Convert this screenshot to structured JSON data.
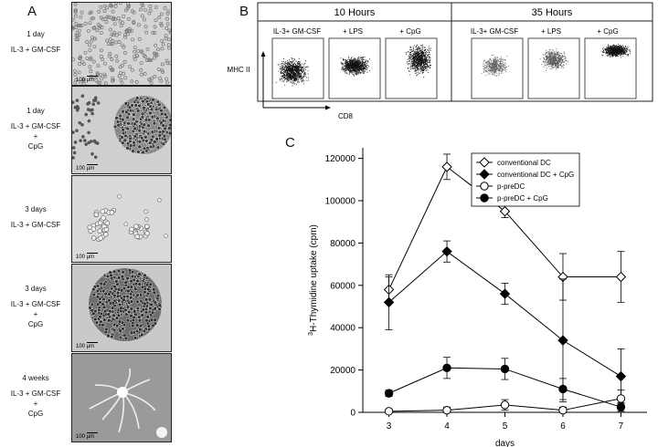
{
  "panel_a": {
    "letter": "A",
    "rows": [
      {
        "lines": [
          "1 day",
          "IL-3 + GM-CSF"
        ],
        "scale": "100 µm"
      },
      {
        "lines": [
          "1 day",
          "IL-3 + GM-CSF",
          "+",
          "CpG"
        ],
        "scale": "100 µm"
      },
      {
        "lines": [
          "3 days",
          "IL-3 + GM-CSF"
        ],
        "scale": "100 µm"
      },
      {
        "lines": [
          "3 days",
          "IL-3 + GM-CSF",
          "+",
          "CpG"
        ],
        "scale": "100 µm"
      },
      {
        "lines": [
          "4 weeks",
          "IL-3 + GM-CSF",
          "+",
          "CpG"
        ],
        "scale": "100 µm"
      }
    ]
  },
  "panel_b": {
    "letter": "B",
    "groups": [
      "10 Hours",
      "35 Hours"
    ],
    "plot_labels": [
      "IL-3+ GM-CSF",
      "+ LPS",
      "+ CpG",
      "IL-3+ GM-CSF",
      "+ LPS",
      "+ CpG"
    ],
    "y_axis": "MHC II",
    "x_axis": "CD8"
  },
  "panel_c": {
    "letter": "C"
  },
  "chart_data": {
    "type": "line",
    "xlabel": "days",
    "ylabel_sup": "3",
    "ylabel": "H-Thymidine uptake (cpm)",
    "x": [
      3,
      4,
      5,
      6,
      7
    ],
    "xlim": [
      2.55,
      7.45
    ],
    "ylim": [
      0,
      125000
    ],
    "yticks": [
      0,
      20000,
      40000,
      60000,
      80000,
      100000,
      120000
    ],
    "xticks": [
      3,
      4,
      5,
      6,
      7
    ],
    "legend_position": "top-right",
    "series": [
      {
        "name": "conventional DC",
        "marker": "open-diamond",
        "values": [
          58000,
          116000,
          95000,
          64000,
          64000
        ],
        "errors": [
          6000,
          6000,
          3000,
          11000,
          12000
        ]
      },
      {
        "name": "conventional DC + CpG",
        "marker": "filled-diamond",
        "values": [
          52000,
          76000,
          56000,
          34000,
          17000
        ],
        "errors": [
          13000,
          5000,
          5000,
          29000,
          13000
        ]
      },
      {
        "name": "p-preDC",
        "marker": "open-circle",
        "values": [
          500,
          1000,
          3500,
          1000,
          6500
        ],
        "errors": [
          500,
          1500,
          2500,
          1500,
          4000
        ]
      },
      {
        "name": "p-preDC + CpG",
        "marker": "filled-circle",
        "values": [
          9000,
          21000,
          20500,
          11000,
          2500
        ],
        "errors": [
          1500,
          5000,
          5000,
          5000,
          2000
        ]
      }
    ]
  }
}
